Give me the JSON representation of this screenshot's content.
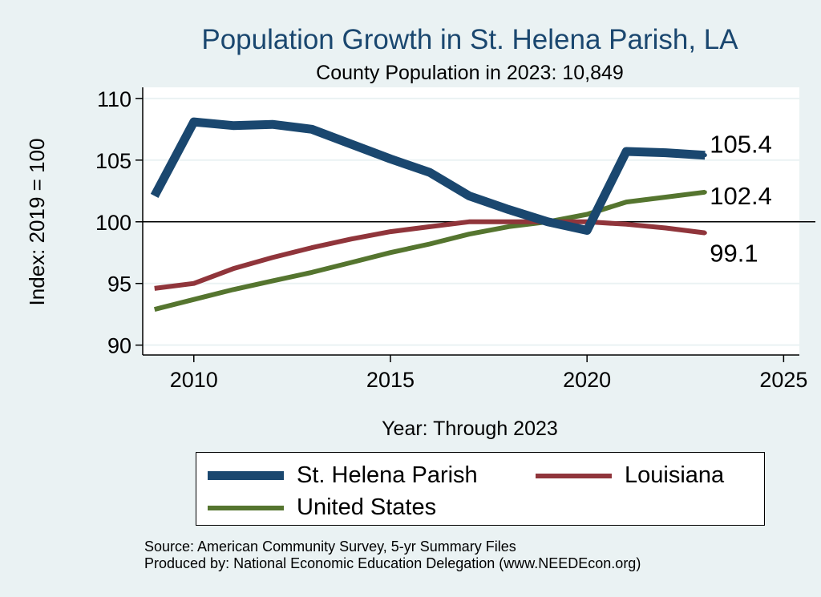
{
  "chart_data": {
    "type": "line",
    "title": "Population Growth in St. Helena Parish, LA",
    "subtitle": "County Population in 2023: 10,849",
    "xlabel": "Year: Through 2023",
    "ylabel": "Index: 2019 = 100",
    "xlim": [
      2008.7,
      2025.4
    ],
    "ylim": [
      89.2,
      110.9
    ],
    "xticks": [
      2010,
      2015,
      2020,
      2025
    ],
    "yticks": [
      90,
      95,
      100,
      105,
      110
    ],
    "reference_line": 100,
    "x": [
      2009,
      2010,
      2011,
      2012,
      2013,
      2014,
      2015,
      2016,
      2017,
      2018,
      2019,
      2020,
      2021,
      2022,
      2023
    ],
    "series": [
      {
        "name": "St. Helena Parish",
        "color": "#1a476f",
        "width": 11,
        "values": [
          102.1,
          108.1,
          107.8,
          107.9,
          107.5,
          106.3,
          105.1,
          104.0,
          102.1,
          101.0,
          100.0,
          99.3,
          105.7,
          105.6,
          105.4
        ],
        "end_label": "105.4"
      },
      {
        "name": "Louisiana",
        "color": "#90353b",
        "width": 6,
        "values": [
          94.6,
          95.0,
          96.2,
          97.1,
          97.9,
          98.6,
          99.2,
          99.6,
          100.0,
          100.0,
          100.0,
          100.0,
          99.8,
          99.5,
          99.1
        ],
        "end_label": "99.1"
      },
      {
        "name": "United States",
        "color": "#55752f",
        "width": 6,
        "values": [
          92.9,
          93.7,
          94.5,
          95.2,
          95.9,
          96.7,
          97.5,
          98.2,
          99.0,
          99.6,
          100.0,
          100.6,
          101.6,
          102.0,
          102.4
        ],
        "end_label": "102.4"
      }
    ],
    "legend": {
      "position": "bottom"
    }
  },
  "source": {
    "line1": "Source: American Community Survey, 5-yr Summary Files",
    "line2": "Produced by: National Economic Education Delegation (www.NEEDEcon.org)"
  }
}
